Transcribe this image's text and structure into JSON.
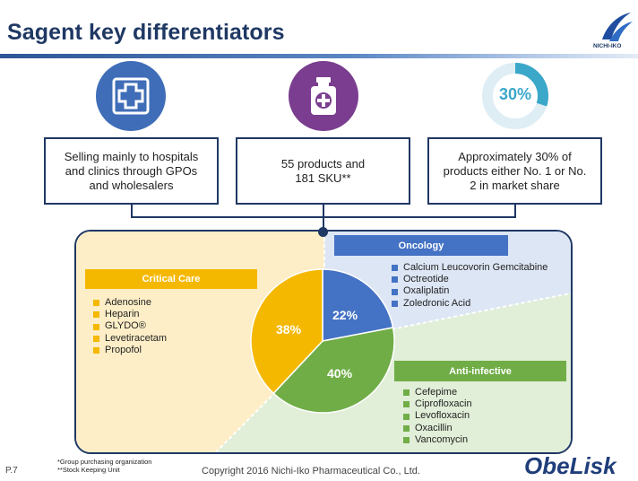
{
  "header": {
    "title": "Sagent key differentiators",
    "logo_text": "NICHI-IKO"
  },
  "icons": {
    "donut_label": "30%",
    "donut_fraction": 0.3
  },
  "boxes": [
    {
      "text": "Selling mainly to hospitals\nand clinics through GPOs\nand wholesalers"
    },
    {
      "text": "55 products and\n181 SKU**"
    },
    {
      "text": "Approximately 30% of\nproducts either No. 1 or No.\n2 in market share"
    }
  ],
  "colors": {
    "navy": "#1f3864",
    "critical": "#f5b800",
    "oncology": "#4472c4",
    "anti_infective": "#70ad47"
  },
  "chart_data": {
    "type": "pie",
    "slices": [
      {
        "label": "22%",
        "value": 22,
        "color": "#4472c4"
      },
      {
        "label": "40%",
        "value": 40,
        "color": "#70ad47"
      },
      {
        "label": "38%",
        "value": 38,
        "color": "#f5b800"
      }
    ]
  },
  "categories": {
    "critical": {
      "title": "Critical Care",
      "items": [
        "Adenosine",
        "Heparin",
        "GLYDO®",
        "Levetiracetam",
        "Propofol"
      ]
    },
    "oncology": {
      "title": "Oncology",
      "items": [
        "Calcium Leucovorin Gemcitabine",
        "Octreotide",
        "Oxaliplatin",
        "Zoledronic Acid"
      ]
    },
    "anti_infective": {
      "title": "Anti-infective",
      "items": [
        "Cefepime",
        "Ciprofloxacin",
        "Levofloxacin",
        "Oxacillin",
        "Vancomycin"
      ]
    }
  },
  "footer": {
    "notes": [
      "*Group purchasing organization",
      "**Stock Keeping Unit"
    ],
    "page": "P.7",
    "copyright": "Copyright 2016 Nichi-Iko Pharmaceutical Co., Ltd.",
    "brand": "ObeLisk"
  }
}
